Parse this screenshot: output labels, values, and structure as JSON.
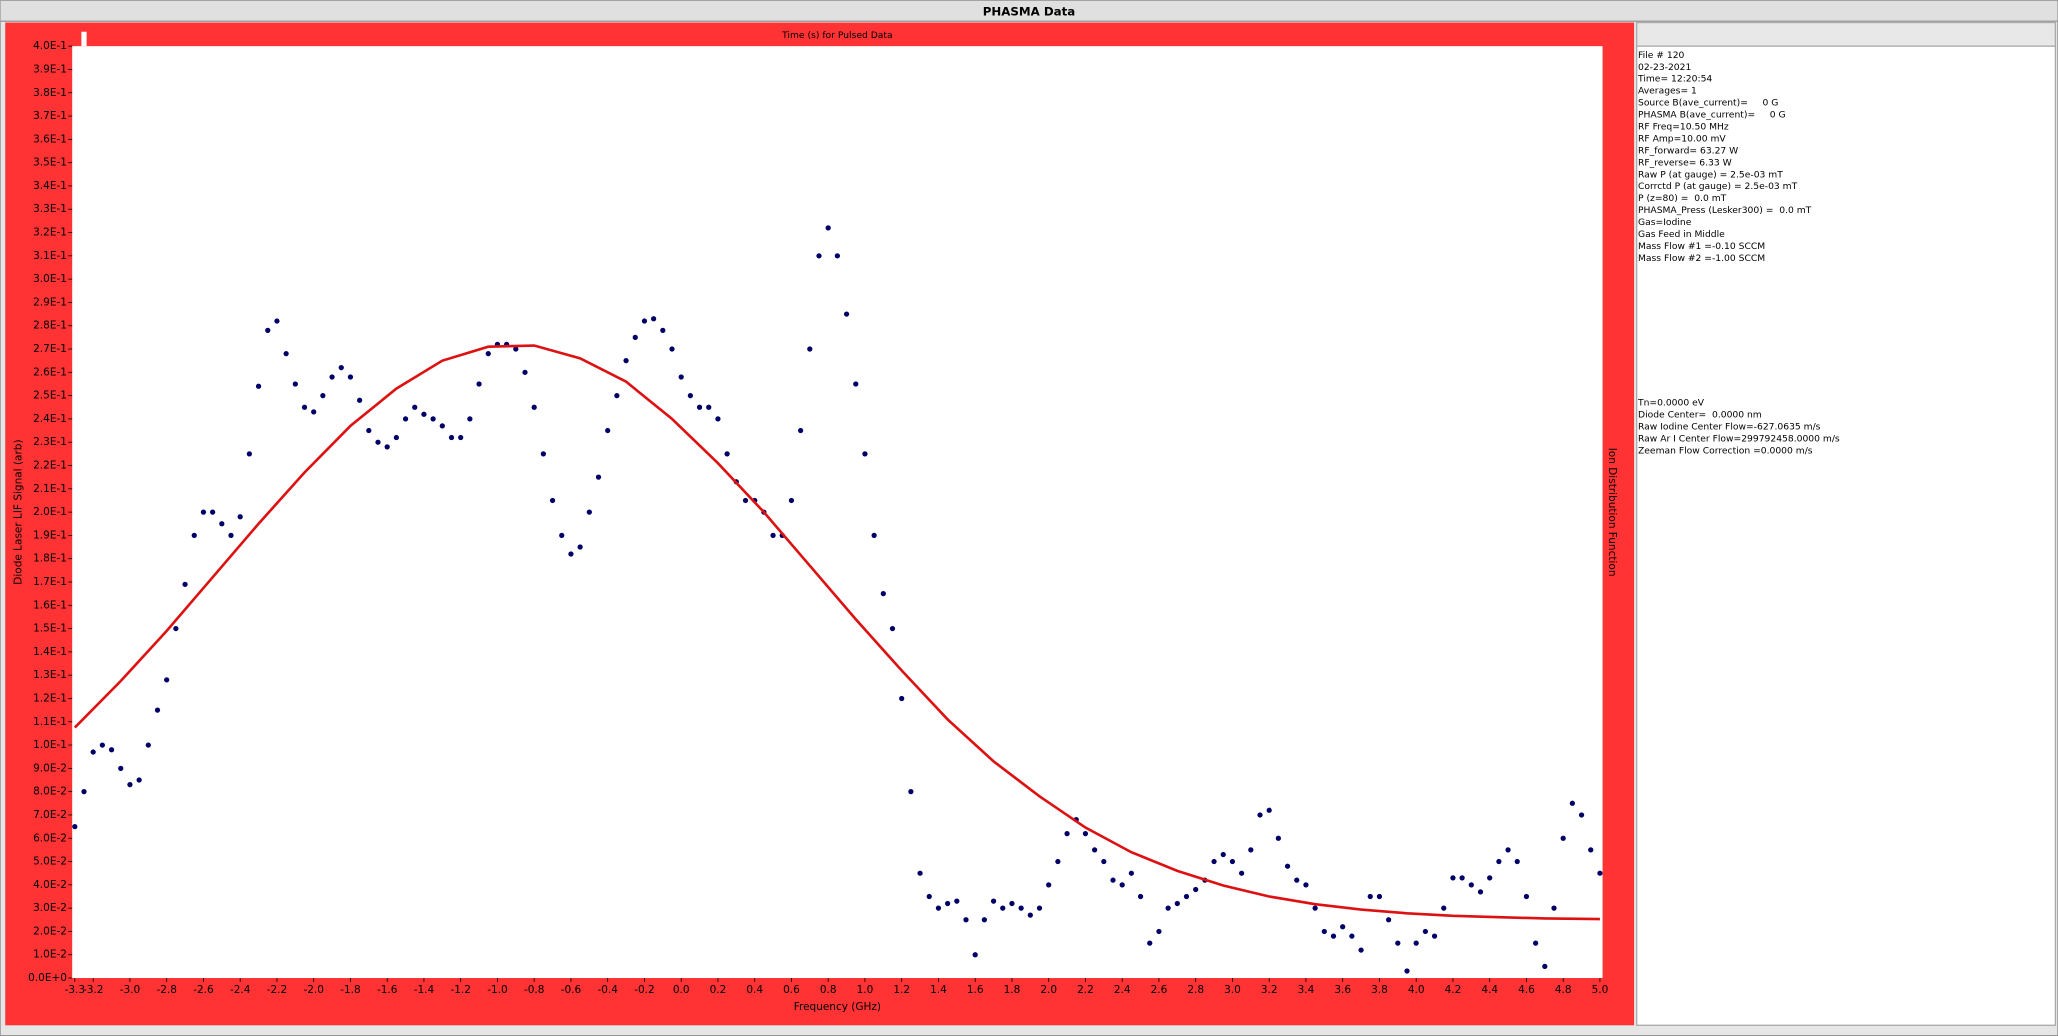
{
  "window_title": "PHASMA Data",
  "chart_data": {
    "type": "scatter",
    "title": "Time (s) for Pulsed Data",
    "x_label": "Frequency (GHz)",
    "y_label": "Diode Laser LIF Signal (arb)",
    "y2_label": "Ion Distribution Function",
    "background": "#ff3333",
    "xlim": [
      -3.3,
      5.0
    ],
    "xticks": [
      -3.3,
      -3.2,
      {
        "value": -3.0,
        "label": "-3.0"
      },
      -2.8,
      -2.6,
      -2.4,
      -2.2,
      {
        "value": -2.0,
        "label": "-2.0"
      },
      -1.8,
      -1.6,
      -1.4,
      -1.2,
      {
        "value": -1.0,
        "label": "-1.0"
      },
      -0.8,
      -0.6,
      -0.4,
      -0.2,
      {
        "value": 0.0,
        "label": "0.0"
      },
      0.2,
      0.4,
      0.6,
      0.8,
      {
        "value": 1.0,
        "label": "1.0"
      },
      1.2,
      1.4,
      1.6,
      1.8,
      {
        "value": 2.0,
        "label": "2.0"
      },
      2.2,
      2.4,
      2.6,
      2.8,
      {
        "value": 3.0,
        "label": "3.0"
      },
      3.2,
      3.4,
      3.6,
      3.8,
      {
        "value": 4.0,
        "label": "4.0"
      },
      4.2,
      4.4,
      4.6,
      4.8,
      {
        "value": 5.0,
        "label": "5.0"
      }
    ],
    "ylim": [
      0,
      0.4
    ],
    "yticks": [
      {
        "value": 0,
        "label": "0.0E+0"
      },
      {
        "value": 0.01,
        "label": "1.0E-2"
      },
      {
        "value": 0.02,
        "label": "2.0E-2"
      },
      {
        "value": 0.03,
        "label": "3.0E-2"
      },
      {
        "value": 0.04,
        "label": "4.0E-2"
      },
      {
        "value": 0.05,
        "label": "5.0E-2"
      },
      {
        "value": 0.06,
        "label": "6.0E-2"
      },
      {
        "value": 0.07,
        "label": "7.0E-2"
      },
      {
        "value": 0.08,
        "label": "8.0E-2"
      },
      {
        "value": 0.09,
        "label": "9.0E-2"
      },
      {
        "value": 0.1,
        "label": "1.0E-1"
      },
      {
        "value": 0.11,
        "label": "1.1E-1"
      },
      {
        "value": 0.12,
        "label": "1.2E-1"
      },
      {
        "value": 0.13,
        "label": "1.3E-1"
      },
      {
        "value": 0.14,
        "label": "1.4E-1"
      },
      {
        "value": 0.15,
        "label": "1.5E-1"
      },
      {
        "value": 0.16,
        "label": "1.6E-1"
      },
      {
        "value": 0.17,
        "label": "1.7E-1"
      },
      {
        "value": 0.18,
        "label": "1.8E-1"
      },
      {
        "value": 0.19,
        "label": "1.9E-1"
      },
      {
        "value": 0.2,
        "label": "2.0E-1"
      },
      {
        "value": 0.21,
        "label": "2.1E-1"
      },
      {
        "value": 0.22,
        "label": "2.2E-1"
      },
      {
        "value": 0.23,
        "label": "2.3E-1"
      },
      {
        "value": 0.24,
        "label": "2.4E-1"
      },
      {
        "value": 0.25,
        "label": "2.5E-1"
      },
      {
        "value": 0.26,
        "label": "2.6E-1"
      },
      {
        "value": 0.27,
        "label": "2.7E-1"
      },
      {
        "value": 0.28,
        "label": "2.8E-1"
      },
      {
        "value": 0.29,
        "label": "2.9E-1"
      },
      {
        "value": 0.3,
        "label": "3.0E-1"
      },
      {
        "value": 0.31,
        "label": "3.1E-1"
      },
      {
        "value": 0.32,
        "label": "3.2E-1"
      },
      {
        "value": 0.33,
        "label": "3.3E-1"
      },
      {
        "value": 0.34,
        "label": "3.4E-1"
      },
      {
        "value": 0.35,
        "label": "3.5E-1"
      },
      {
        "value": 0.36,
        "label": "3.6E-1"
      },
      {
        "value": 0.37,
        "label": "3.7E-1"
      },
      {
        "value": 0.38,
        "label": "3.8E-1"
      },
      {
        "value": 0.39,
        "label": "3.9E-1"
      },
      {
        "value": 0.4,
        "label": "4.0E-1"
      }
    ],
    "series": [
      {
        "style": "dots",
        "color": "#000066",
        "x": [
          -3.3,
          -3.25,
          -3.2,
          -3.15,
          -3.1,
          -3.05,
          -3.0,
          -2.95,
          -2.9,
          -2.85,
          -2.8,
          -2.75,
          -2.7,
          -2.65,
          -2.6,
          -2.55,
          -2.5,
          -2.45,
          -2.4,
          -2.35,
          -2.3,
          -2.25,
          -2.2,
          -2.15,
          -2.1,
          -2.05,
          -2.0,
          -1.95,
          -1.9,
          -1.85,
          -1.8,
          -1.75,
          -1.7,
          -1.65,
          -1.6,
          -1.55,
          -1.5,
          -1.45,
          -1.4,
          -1.35,
          -1.3,
          -1.25,
          -1.2,
          -1.15,
          -1.1,
          -1.05,
          -1.0,
          -0.95,
          -0.9,
          -0.85,
          -0.8,
          -0.75,
          -0.7,
          -0.65,
          -0.6,
          -0.55,
          -0.5,
          -0.45,
          -0.4,
          -0.35,
          -0.3,
          -0.25,
          -0.2,
          -0.15,
          -0.1,
          -0.05,
          0.0,
          0.05,
          0.1,
          0.15,
          0.2,
          0.25,
          0.3,
          0.35,
          0.4,
          0.45,
          0.5,
          0.55,
          0.6,
          0.65,
          0.7,
          0.75,
          0.8,
          0.85,
          0.9,
          0.95,
          1.0,
          1.05,
          1.1,
          1.15,
          1.2,
          1.25,
          1.3,
          1.35,
          1.4,
          1.45,
          1.5,
          1.55,
          1.6,
          1.65,
          1.7,
          1.75,
          1.8,
          1.85,
          1.9,
          1.95,
          2.0,
          2.05,
          2.1,
          2.15,
          2.2,
          2.25,
          2.3,
          2.35,
          2.4,
          2.45,
          2.5,
          2.55,
          2.6,
          2.65,
          2.7,
          2.75,
          2.8,
          2.85,
          2.9,
          2.95,
          3.0,
          3.05,
          3.1,
          3.15,
          3.2,
          3.25,
          3.3,
          3.35,
          3.4,
          3.45,
          3.5,
          3.55,
          3.6,
          3.65,
          3.7,
          3.75,
          3.8,
          3.85,
          3.9,
          3.95,
          4.0,
          4.05,
          4.1,
          4.15,
          4.2,
          4.25,
          4.3,
          4.35,
          4.4,
          4.45,
          4.5,
          4.55,
          4.6,
          4.65,
          4.7,
          4.75,
          4.8,
          4.85,
          4.9,
          4.95,
          5.0
        ],
        "values": [
          0.065,
          0.08,
          0.097,
          0.1,
          0.098,
          0.09,
          0.083,
          0.085,
          0.1,
          0.115,
          0.128,
          0.15,
          0.169,
          0.19,
          0.2,
          0.2,
          0.195,
          0.19,
          0.198,
          0.225,
          0.254,
          0.278,
          0.282,
          0.268,
          0.255,
          0.245,
          0.243,
          0.25,
          0.258,
          0.262,
          0.258,
          0.248,
          0.235,
          0.23,
          0.228,
          0.232,
          0.24,
          0.245,
          0.242,
          0.24,
          0.237,
          0.232,
          0.232,
          0.24,
          0.255,
          0.268,
          0.272,
          0.272,
          0.27,
          0.26,
          0.245,
          0.225,
          0.205,
          0.19,
          0.182,
          0.185,
          0.2,
          0.215,
          0.235,
          0.25,
          0.265,
          0.275,
          0.282,
          0.283,
          0.278,
          0.27,
          0.258,
          0.25,
          0.245,
          0.245,
          0.24,
          0.225,
          0.213,
          0.205,
          0.205,
          0.2,
          0.19,
          0.19,
          0.205,
          0.235,
          0.27,
          0.31,
          0.322,
          0.31,
          0.285,
          0.255,
          0.225,
          0.19,
          0.165,
          0.15,
          0.12,
          0.08,
          0.045,
          0.035,
          0.03,
          0.032,
          0.033,
          0.025,
          0.01,
          0.025,
          0.033,
          0.03,
          0.032,
          0.03,
          0.027,
          0.03,
          0.04,
          0.05,
          0.062,
          0.068,
          0.062,
          0.055,
          0.05,
          0.042,
          0.04,
          0.045,
          0.035,
          0.015,
          0.02,
          0.03,
          0.032,
          0.035,
          0.038,
          0.042,
          0.05,
          0.053,
          0.05,
          0.045,
          0.055,
          0.07,
          0.072,
          0.06,
          0.048,
          0.042,
          0.04,
          0.03,
          0.02,
          0.018,
          0.022,
          0.018,
          0.012,
          0.035,
          0.035,
          0.025,
          0.015,
          0.003,
          0.015,
          0.02,
          0.018,
          0.03,
          0.043,
          0.043,
          0.04,
          0.037,
          0.043,
          0.05,
          0.055,
          0.05,
          0.035,
          0.015,
          0.005,
          0.03,
          0.06,
          0.075,
          0.07,
          0.055,
          0.045
        ]
      },
      {
        "style": "line",
        "color": "#dd1111",
        "x": [
          -3.3,
          -3.05,
          -2.8,
          -2.55,
          -2.3,
          -2.05,
          -1.8,
          -1.55,
          -1.3,
          -1.05,
          -0.8,
          -0.55,
          -0.3,
          -0.05,
          0.2,
          0.45,
          0.7,
          0.95,
          1.2,
          1.45,
          1.7,
          1.95,
          2.2,
          2.45,
          2.7,
          2.95,
          3.2,
          3.45,
          3.7,
          3.95,
          4.2,
          4.45,
          4.7,
          5.0
        ],
        "values": [
          0.1075,
          0.1275,
          0.149,
          0.172,
          0.195,
          0.217,
          0.237,
          0.253,
          0.265,
          0.271,
          0.2715,
          0.266,
          0.256,
          0.24,
          0.221,
          0.2,
          0.177,
          0.154,
          0.132,
          0.111,
          0.093,
          0.078,
          0.0646,
          0.054,
          0.046,
          0.0397,
          0.035,
          0.0317,
          0.0294,
          0.0278,
          0.0267,
          0.0261,
          0.0256,
          0.0253
        ]
      }
    ]
  },
  "info_panel": {
    "group1": [
      "File # 120",
      "02-23-2021",
      "Time= 12:20:54",
      "Averages= 1",
      "Source B(ave_current)=     0 G",
      "PHASMA B(ave_current)=     0 G",
      "RF Freq=10.50 MHz",
      "RF Amp=10.00 mV",
      "RF_forward= 63.27 W",
      "RF_reverse= 6.33 W",
      "Raw P (at gauge) = 2.5e-03 mT",
      "Corrctd P (at gauge) = 2.5e-03 mT",
      "P (z=80) =  0.0 mT",
      "PHASMA_Press (Lesker300) =  0.0 mT",
      "Gas=Iodine",
      "Gas Feed in Middle",
      "Mass Flow #1 =-0.10 SCCM",
      "Mass Flow #2 =-1.00 SCCM"
    ],
    "group2": [
      "Tn=0.0000 eV",
      "Diode Center=  0.0000 nm",
      "Raw Iodine Center Flow=-627.0635 m/s",
      "Raw Ar I Center Flow=299792458.0000 m/s",
      "Zeeman Flow Correction =0.0000 m/s"
    ]
  }
}
